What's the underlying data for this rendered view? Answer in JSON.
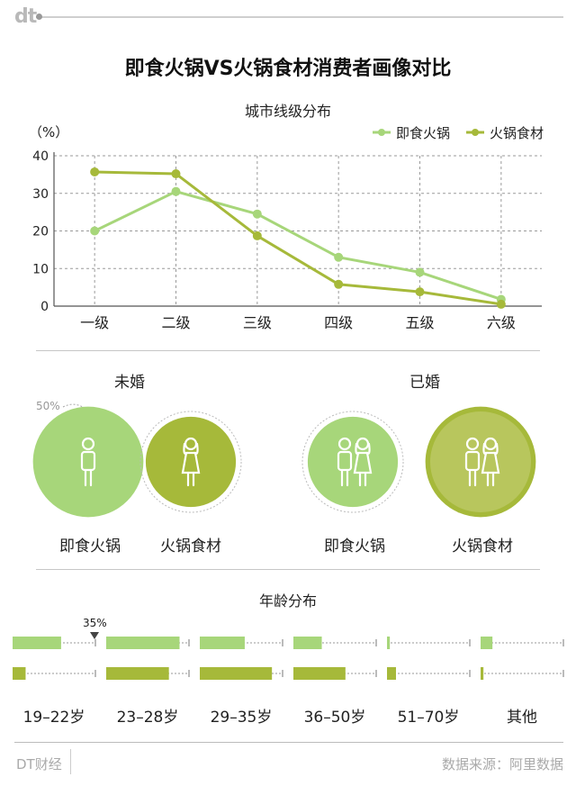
{
  "brand": {
    "logo_text": "dt",
    "footer_left": "DT财经",
    "footer_right": "数据来源：阿里数据"
  },
  "title": "即食火锅VS火锅食材消费者画像对比",
  "colors": {
    "light_green": "#a7d67a",
    "dark_green": "#a6b93a",
    "dark_green_ring": "#c7d27a"
  },
  "chart_data": [
    {
      "type": "line",
      "title": "城市线级分布",
      "ylabel": "（%）",
      "categories": [
        "一级",
        "二级",
        "三级",
        "四级",
        "五级",
        "六级"
      ],
      "ylim": [
        0,
        40
      ],
      "yticks": [
        0,
        10,
        20,
        30,
        40
      ],
      "grid": true,
      "legend": "top-right",
      "series": [
        {
          "name": "即食火锅",
          "color": "#a7d67a",
          "values": [
            20,
            30.5,
            24.5,
            13,
            9,
            1.8
          ]
        },
        {
          "name": "火锅食材",
          "color": "#a6b93a",
          "values": [
            35.7,
            35.2,
            18.7,
            5.8,
            3.8,
            0.5
          ]
        }
      ]
    },
    {
      "type": "bubble",
      "groups": [
        {
          "label": "未婚",
          "items": [
            {
              "name": "即食火锅",
              "value": 60,
              "color": "#a7d67a"
            },
            {
              "name": "火锅食材",
              "value": 40,
              "color": "#a6b93a"
            }
          ]
        },
        {
          "label": "已婚",
          "items": [
            {
              "name": "即食火锅",
              "value": 40,
              "color": "#a7d67a"
            },
            {
              "name": "火锅食材",
              "value": 60,
              "color": "#a6b93a"
            }
          ]
        }
      ],
      "reference_label": "50%"
    },
    {
      "type": "bar",
      "title": "年龄分布",
      "categories": [
        "19–22岁",
        "23–28岁",
        "29–35岁",
        "36–50岁",
        "51–70岁",
        "其他"
      ],
      "xlim": [
        0,
        35
      ],
      "reference_label": "35%",
      "series": [
        {
          "name": "即食火锅",
          "color": "#a7d67a",
          "values": [
            20.5,
            31,
            19,
            12,
            1.2,
            5
          ]
        },
        {
          "name": "火锅食材",
          "color": "#a6b93a",
          "values": [
            5.5,
            26.5,
            30.5,
            22,
            3.8,
            1.2
          ]
        }
      ]
    }
  ]
}
